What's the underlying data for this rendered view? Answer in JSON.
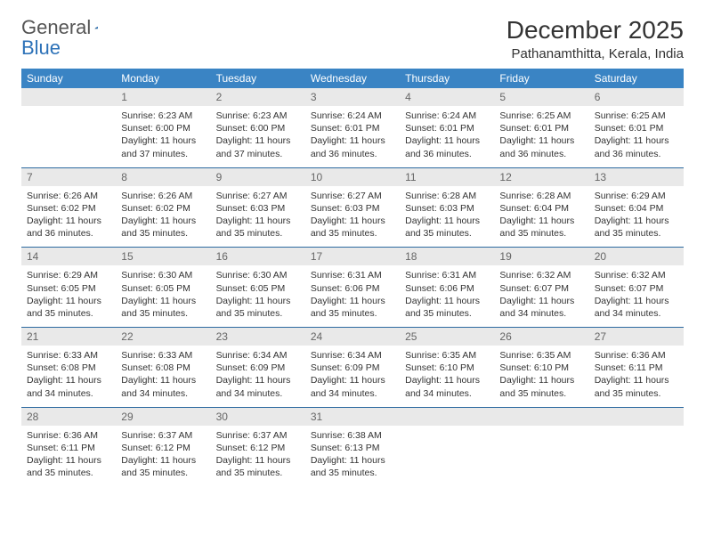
{
  "logo": {
    "text1": "General",
    "text2": "Blue"
  },
  "title": "December 2025",
  "location": "Pathanamthitta, Kerala, India",
  "colors": {
    "header_bg": "#3a84c4",
    "header_text": "#ffffff",
    "daynum_bg": "#e9e9e9",
    "daynum_text": "#666666",
    "border": "#2d6aa0",
    "body_text": "#333333"
  },
  "weekdays": [
    "Sunday",
    "Monday",
    "Tuesday",
    "Wednesday",
    "Thursday",
    "Friday",
    "Saturday"
  ],
  "weeks": [
    [
      null,
      {
        "n": "1",
        "sr": "6:23 AM",
        "ss": "6:00 PM",
        "dl": "11 hours and 37 minutes."
      },
      {
        "n": "2",
        "sr": "6:23 AM",
        "ss": "6:00 PM",
        "dl": "11 hours and 37 minutes."
      },
      {
        "n": "3",
        "sr": "6:24 AM",
        "ss": "6:01 PM",
        "dl": "11 hours and 36 minutes."
      },
      {
        "n": "4",
        "sr": "6:24 AM",
        "ss": "6:01 PM",
        "dl": "11 hours and 36 minutes."
      },
      {
        "n": "5",
        "sr": "6:25 AM",
        "ss": "6:01 PM",
        "dl": "11 hours and 36 minutes."
      },
      {
        "n": "6",
        "sr": "6:25 AM",
        "ss": "6:01 PM",
        "dl": "11 hours and 36 minutes."
      }
    ],
    [
      {
        "n": "7",
        "sr": "6:26 AM",
        "ss": "6:02 PM",
        "dl": "11 hours and 36 minutes."
      },
      {
        "n": "8",
        "sr": "6:26 AM",
        "ss": "6:02 PM",
        "dl": "11 hours and 35 minutes."
      },
      {
        "n": "9",
        "sr": "6:27 AM",
        "ss": "6:03 PM",
        "dl": "11 hours and 35 minutes."
      },
      {
        "n": "10",
        "sr": "6:27 AM",
        "ss": "6:03 PM",
        "dl": "11 hours and 35 minutes."
      },
      {
        "n": "11",
        "sr": "6:28 AM",
        "ss": "6:03 PM",
        "dl": "11 hours and 35 minutes."
      },
      {
        "n": "12",
        "sr": "6:28 AM",
        "ss": "6:04 PM",
        "dl": "11 hours and 35 minutes."
      },
      {
        "n": "13",
        "sr": "6:29 AM",
        "ss": "6:04 PM",
        "dl": "11 hours and 35 minutes."
      }
    ],
    [
      {
        "n": "14",
        "sr": "6:29 AM",
        "ss": "6:05 PM",
        "dl": "11 hours and 35 minutes."
      },
      {
        "n": "15",
        "sr": "6:30 AM",
        "ss": "6:05 PM",
        "dl": "11 hours and 35 minutes."
      },
      {
        "n": "16",
        "sr": "6:30 AM",
        "ss": "6:05 PM",
        "dl": "11 hours and 35 minutes."
      },
      {
        "n": "17",
        "sr": "6:31 AM",
        "ss": "6:06 PM",
        "dl": "11 hours and 35 minutes."
      },
      {
        "n": "18",
        "sr": "6:31 AM",
        "ss": "6:06 PM",
        "dl": "11 hours and 35 minutes."
      },
      {
        "n": "19",
        "sr": "6:32 AM",
        "ss": "6:07 PM",
        "dl": "11 hours and 34 minutes."
      },
      {
        "n": "20",
        "sr": "6:32 AM",
        "ss": "6:07 PM",
        "dl": "11 hours and 34 minutes."
      }
    ],
    [
      {
        "n": "21",
        "sr": "6:33 AM",
        "ss": "6:08 PM",
        "dl": "11 hours and 34 minutes."
      },
      {
        "n": "22",
        "sr": "6:33 AM",
        "ss": "6:08 PM",
        "dl": "11 hours and 34 minutes."
      },
      {
        "n": "23",
        "sr": "6:34 AM",
        "ss": "6:09 PM",
        "dl": "11 hours and 34 minutes."
      },
      {
        "n": "24",
        "sr": "6:34 AM",
        "ss": "6:09 PM",
        "dl": "11 hours and 34 minutes."
      },
      {
        "n": "25",
        "sr": "6:35 AM",
        "ss": "6:10 PM",
        "dl": "11 hours and 34 minutes."
      },
      {
        "n": "26",
        "sr": "6:35 AM",
        "ss": "6:10 PM",
        "dl": "11 hours and 35 minutes."
      },
      {
        "n": "27",
        "sr": "6:36 AM",
        "ss": "6:11 PM",
        "dl": "11 hours and 35 minutes."
      }
    ],
    [
      {
        "n": "28",
        "sr": "6:36 AM",
        "ss": "6:11 PM",
        "dl": "11 hours and 35 minutes."
      },
      {
        "n": "29",
        "sr": "6:37 AM",
        "ss": "6:12 PM",
        "dl": "11 hours and 35 minutes."
      },
      {
        "n": "30",
        "sr": "6:37 AM",
        "ss": "6:12 PM",
        "dl": "11 hours and 35 minutes."
      },
      {
        "n": "31",
        "sr": "6:38 AM",
        "ss": "6:13 PM",
        "dl": "11 hours and 35 minutes."
      },
      null,
      null,
      null
    ]
  ],
  "labels": {
    "sunrise": "Sunrise:",
    "sunset": "Sunset:",
    "daylight": "Daylight:"
  }
}
